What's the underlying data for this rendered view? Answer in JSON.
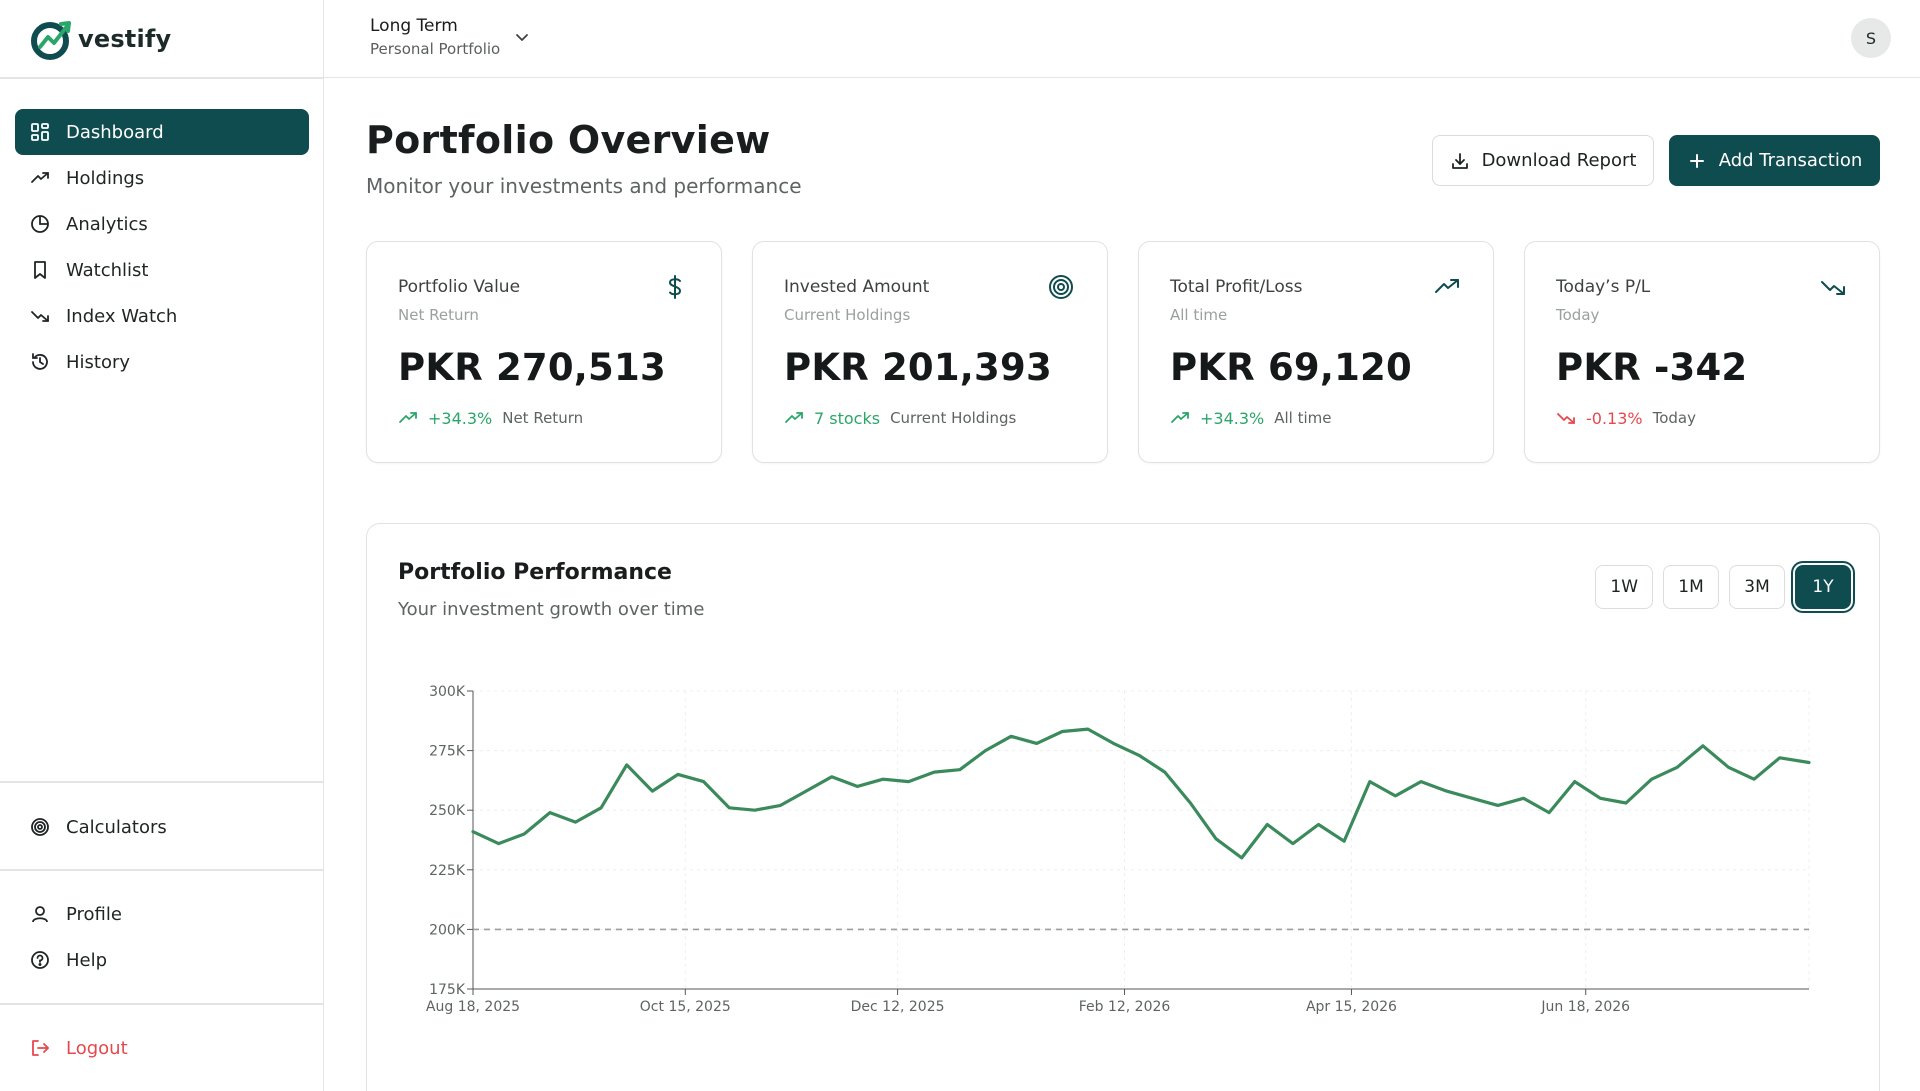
{
  "brand": {
    "name": "vestify"
  },
  "portfolio": {
    "name": "Long Term",
    "type": "Personal Portfolio"
  },
  "user": {
    "initial": "S"
  },
  "sidebar": {
    "main": [
      {
        "label": "Dashboard",
        "icon": "dashboard-icon",
        "active": true
      },
      {
        "label": "Holdings",
        "icon": "trending-up-icon"
      },
      {
        "label": "Analytics",
        "icon": "pie-chart-icon"
      },
      {
        "label": "Watchlist",
        "icon": "bookmark-icon"
      },
      {
        "label": "Index Watch",
        "icon": "trending-down-icon"
      },
      {
        "label": "History",
        "icon": "history-icon"
      }
    ],
    "tools": [
      {
        "label": "Calculators",
        "icon": "target-icon"
      }
    ],
    "account": [
      {
        "label": "Profile",
        "icon": "user-icon"
      },
      {
        "label": "Help",
        "icon": "help-icon"
      }
    ],
    "logout": {
      "label": "Logout",
      "icon": "logout-icon"
    }
  },
  "page": {
    "title": "Portfolio Overview",
    "subtitle": "Monitor your investments and performance",
    "download_label": "Download Report",
    "add_label": "Add Transaction"
  },
  "cards": [
    {
      "title": "Portfolio Value",
      "subtitle": "Net Return",
      "value": "PKR 270,513",
      "delta": "+34.3%",
      "delta_dir": "up",
      "note": "Net Return",
      "icon": "dollar-icon"
    },
    {
      "title": "Invested Amount",
      "subtitle": "Current Holdings",
      "value": "PKR 201,393",
      "delta": "7 stocks",
      "delta_dir": "up",
      "note": "Current Holdings",
      "icon": "target-icon"
    },
    {
      "title": "Total Profit/Loss",
      "subtitle": "All time",
      "value": "PKR 69,120",
      "delta": "+34.3%",
      "delta_dir": "up",
      "note": "All time",
      "icon": "trending-up-icon"
    },
    {
      "title": "Today’s P/L",
      "subtitle": "Today",
      "value": "PKR -342",
      "delta": "-0.13%",
      "delta_dir": "down",
      "note": "Today",
      "icon": "trending-down-icon"
    }
  ],
  "performance": {
    "title": "Portfolio Performance",
    "subtitle": "Your investment growth over time",
    "ranges": [
      "1W",
      "1M",
      "3M",
      "1Y"
    ],
    "active_range": "1Y"
  },
  "colors": {
    "primary": "#0f4c50",
    "line": "#3a8a5c",
    "up": "#2aa66a",
    "down": "#e5484d"
  },
  "chart_data": {
    "type": "line",
    "x_start": "2025-08-18",
    "x_end": "2026-08-18",
    "xticks": [
      "Aug 18, 2025",
      "Oct 15, 2025",
      "Dec 12, 2025",
      "Feb 12, 2026",
      "Apr 15, 2026",
      "Jun 18, 2026"
    ],
    "yticks": [
      "175K",
      "200K",
      "225K",
      "250K",
      "275K",
      "300K"
    ],
    "ylim": [
      175000,
      300000
    ],
    "reference_line": 200000,
    "grid": true,
    "series": [
      {
        "x": [
          "2025-08-18",
          "2025-08-25",
          "2025-09-01",
          "2025-09-08",
          "2025-09-15",
          "2025-09-22",
          "2025-09-29",
          "2025-10-06",
          "2025-10-13",
          "2025-10-20",
          "2025-10-27",
          "2025-11-03",
          "2025-11-10",
          "2025-11-17",
          "2025-11-24",
          "2025-12-01",
          "2025-12-08",
          "2025-12-15",
          "2025-12-22",
          "2025-12-29",
          "2026-01-05",
          "2026-01-12",
          "2026-01-19",
          "2026-01-26",
          "2026-02-02",
          "2026-02-09",
          "2026-02-16",
          "2026-02-23",
          "2026-03-02",
          "2026-03-09",
          "2026-03-16",
          "2026-03-23",
          "2026-03-30",
          "2026-04-06",
          "2026-04-13",
          "2026-04-20",
          "2026-04-27",
          "2026-05-04",
          "2026-05-11",
          "2026-05-18",
          "2026-05-25",
          "2026-06-01",
          "2026-06-08",
          "2026-06-15",
          "2026-06-22",
          "2026-06-29",
          "2026-07-06",
          "2026-07-13",
          "2026-07-20",
          "2026-07-27",
          "2026-08-03",
          "2026-08-10",
          "2026-08-18"
        ],
        "values": [
          241000,
          236000,
          240000,
          249000,
          245000,
          251000,
          269000,
          258000,
          265000,
          262000,
          251000,
          250000,
          252000,
          258000,
          264000,
          260000,
          263000,
          262000,
          266000,
          267000,
          275000,
          281000,
          278000,
          283000,
          284000,
          278000,
          273000,
          266000,
          253000,
          238000,
          230000,
          244000,
          236000,
          244000,
          237000,
          262000,
          256000,
          262000,
          258000,
          255000,
          252000,
          255000,
          249000,
          262000,
          255000,
          253000,
          263000,
          268000,
          277000,
          268000,
          263000,
          272000,
          270000
        ]
      }
    ]
  }
}
